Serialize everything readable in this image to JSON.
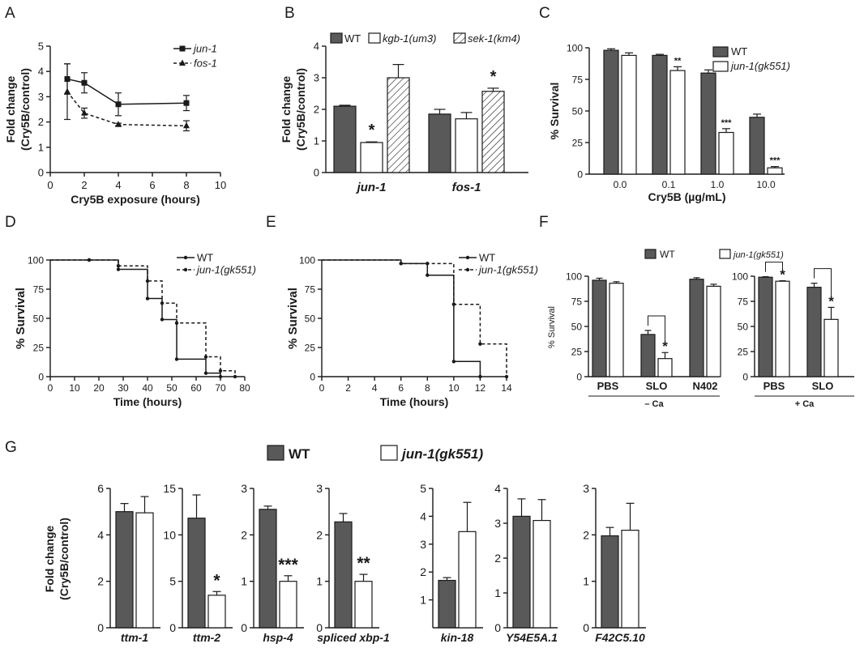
{
  "figure": {
    "panel_labels": [
      "A",
      "B",
      "C",
      "D",
      "E",
      "F",
      "G"
    ]
  },
  "colors": {
    "dark_bar": "#595959",
    "light_bar": "#ffffff",
    "axis": "#1a1a1a"
  },
  "chart_data": [
    {
      "panel": "A",
      "type": "line",
      "xlabel": "Cry5B exposure (hours)",
      "ylabel": [
        "Fold change",
        "(Cry5B/control)"
      ],
      "xlim": [
        0,
        10
      ],
      "ylim": [
        0,
        5
      ],
      "xticks": [
        0,
        2,
        4,
        6,
        8,
        10
      ],
      "yticks": [
        0,
        1,
        2,
        3,
        4,
        5
      ],
      "x": [
        1,
        2,
        4,
        8
      ],
      "series": [
        {
          "name": "jun-1",
          "marker": "square",
          "dash": false,
          "values": [
            3.7,
            3.55,
            2.7,
            2.75
          ],
          "errors": [
            0.6,
            0.4,
            0.45,
            0.3
          ]
        },
        {
          "name": "fos-1",
          "marker": "triangle",
          "dash": true,
          "values": [
            3.2,
            2.35,
            1.9,
            1.85
          ],
          "errors": [
            1.1,
            0.2,
            0.05,
            0.2
          ]
        }
      ],
      "legend": "top-right",
      "grid": false
    },
    {
      "panel": "B",
      "type": "bar",
      "ylabel": [
        "Fold change",
        "(Cry5B/control)"
      ],
      "ylim": [
        0,
        4
      ],
      "yticks": [
        0,
        1,
        2,
        3,
        4
      ],
      "categories": [
        "jun-1",
        "fos-1"
      ],
      "series": [
        {
          "name": "WT",
          "fill": "dark",
          "values": [
            2.1,
            1.85
          ],
          "errors": [
            0.03,
            0.15
          ]
        },
        {
          "name": "kgb-1(um3)",
          "fill": "white",
          "values": [
            0.95,
            1.7
          ],
          "errors": [
            0.02,
            0.2
          ]
        },
        {
          "name": "sek-1(km4)",
          "fill": "hatch",
          "values": [
            3.0,
            2.57
          ],
          "errors": [
            0.42,
            0.1
          ]
        }
      ],
      "annotations": [
        {
          "category": 0,
          "series": 1,
          "text": "*"
        },
        {
          "category": 1,
          "series": 2,
          "text": "*"
        }
      ],
      "legend": "top"
    },
    {
      "panel": "C",
      "type": "bar",
      "xlabel": "Cry5B (µg/mL)",
      "ylabel": "% Survival",
      "ylim": [
        0,
        100
      ],
      "yticks": [
        0,
        25,
        50,
        75,
        100
      ],
      "categories": [
        "0.0",
        "0.1",
        "1.0",
        "10.0"
      ],
      "series": [
        {
          "name": "WT",
          "fill": "dark",
          "values": [
            98,
            94,
            80,
            45
          ],
          "errors": [
            1.2,
            0.8,
            2.5,
            2.5
          ]
        },
        {
          "name": "jun-1(gk551)",
          "fill": "white",
          "values": [
            94,
            82,
            33,
            5
          ],
          "errors": [
            2,
            3,
            3,
            1
          ]
        }
      ],
      "annotations": [
        {
          "category": 1,
          "series": 1,
          "text": "**"
        },
        {
          "category": 2,
          "series": 1,
          "text": "***"
        },
        {
          "category": 3,
          "series": 1,
          "text": "***"
        }
      ],
      "legend": "top-right"
    },
    {
      "panel": "D",
      "type": "line",
      "step": true,
      "xlabel": "Time (hours)",
      "ylabel": "% Survival",
      "xlim": [
        0,
        80
      ],
      "ylim": [
        0,
        100
      ],
      "xticks": [
        0,
        10,
        20,
        30,
        40,
        50,
        60,
        70,
        80
      ],
      "yticks": [
        0,
        25,
        50,
        75,
        100
      ],
      "series": [
        {
          "name": "WT",
          "dash": false,
          "x": [
            0,
            16,
            28,
            40,
            46,
            52,
            64,
            70
          ],
          "values": [
            100,
            100,
            92,
            67,
            49,
            15,
            3,
            0
          ]
        },
        {
          "name": "jun-1(gk551)",
          "dash": true,
          "x": [
            0,
            16,
            28,
            40,
            46,
            52,
            64,
            70,
            76
          ],
          "values": [
            100,
            100,
            95,
            82,
            63,
            46,
            17,
            5,
            0
          ]
        }
      ],
      "legend": "top-right"
    },
    {
      "panel": "E",
      "type": "line",
      "step": true,
      "xlabel": "Time (hours)",
      "ylabel": "% Survival",
      "xlim": [
        0,
        14
      ],
      "ylim": [
        0,
        100
      ],
      "xticks": [
        0,
        2,
        4,
        6,
        8,
        10,
        12,
        14
      ],
      "yticks": [
        0,
        25,
        50,
        75,
        100
      ],
      "series": [
        {
          "name": "WT",
          "dash": false,
          "x": [
            0,
            6,
            8,
            10,
            12
          ],
          "values": [
            100,
            97,
            87,
            13,
            0
          ]
        },
        {
          "name": "jun-1(gk551)",
          "dash": true,
          "x": [
            0,
            6,
            8,
            10,
            12,
            14
          ],
          "values": [
            100,
            97,
            97,
            62,
            28,
            0
          ]
        }
      ],
      "legend": "top-right"
    },
    {
      "panel": "F",
      "type": "bar",
      "ylabel": "% Survival",
      "ylim": [
        0,
        100
      ],
      "yticks": [
        0,
        25,
        50,
        75,
        100
      ],
      "groups": [
        {
          "label": "– Ca",
          "categories": [
            "PBS",
            "SLO",
            "N402"
          ],
          "series": [
            {
              "name": "WT",
              "values": [
                96,
                42,
                97
              ],
              "errors": [
                2,
                4,
                1.5
              ]
            },
            {
              "name": "jun-1(gk551)",
              "values": [
                93,
                18,
                90
              ],
              "errors": [
                1.5,
                6,
                2
              ]
            }
          ],
          "annotations": [
            {
              "category": 1,
              "text": "*"
            }
          ]
        },
        {
          "label": "+ Ca",
          "categories": [
            "PBS",
            "SLO"
          ],
          "series": [
            {
              "name": "WT",
              "values": [
                99,
                89
              ],
              "errors": [
                0.5,
                4
              ]
            },
            {
              "name": "jun-1(gk551)",
              "values": [
                95,
                57
              ],
              "errors": [
                0.5,
                12
              ]
            }
          ],
          "annotations": [
            {
              "category": 0,
              "text": "*"
            },
            {
              "category": 1,
              "text": "*"
            }
          ]
        }
      ],
      "legend": "top"
    },
    {
      "panel": "G",
      "type": "bar",
      "ylabel": [
        "Fold change",
        "(Cry5B/control)"
      ],
      "legend_entries": [
        "WT",
        "jun-1(gk551)"
      ],
      "subplots": [
        {
          "gene": "ttm-1",
          "ymax": 6,
          "yticks": [
            0,
            2,
            4,
            6
          ],
          "values": [
            5.0,
            4.95
          ],
          "errors": [
            0.35,
            0.7
          ],
          "sig": ""
        },
        {
          "gene": "ttm-2",
          "ymax": 15,
          "yticks": [
            0,
            5,
            10,
            15
          ],
          "values": [
            11.8,
            3.5
          ],
          "errors": [
            2.5,
            0.4
          ],
          "sig": "*"
        },
        {
          "gene": "hsp-4",
          "ymax": 3,
          "yticks": [
            0,
            1,
            2,
            3
          ],
          "values": [
            2.55,
            1.0
          ],
          "errors": [
            0.07,
            0.12
          ],
          "sig": "***"
        },
        {
          "gene": "spliced xbp-1",
          "ymax": 3,
          "yticks": [
            0,
            1,
            2,
            3
          ],
          "values": [
            2.28,
            1.0
          ],
          "errors": [
            0.18,
            0.15
          ],
          "sig": "**"
        },
        {
          "gene": "kin-18",
          "ymax": 5,
          "yticks": [
            1,
            2,
            3,
            4,
            5
          ],
          "values": [
            1.7,
            3.45
          ],
          "errors": [
            0.1,
            1.05
          ],
          "sig": ""
        },
        {
          "gene": "Y54E5A.1",
          "ymax": 4,
          "yticks": [
            0,
            1,
            2,
            3,
            4
          ],
          "values": [
            3.2,
            3.08
          ],
          "errors": [
            0.5,
            0.6
          ],
          "sig": ""
        },
        {
          "gene": "F42C5.10",
          "ymax": 3,
          "yticks": [
            0,
            1,
            2,
            3
          ],
          "values": [
            1.98,
            2.1
          ],
          "errors": [
            0.18,
            0.58
          ],
          "sig": ""
        }
      ]
    }
  ]
}
